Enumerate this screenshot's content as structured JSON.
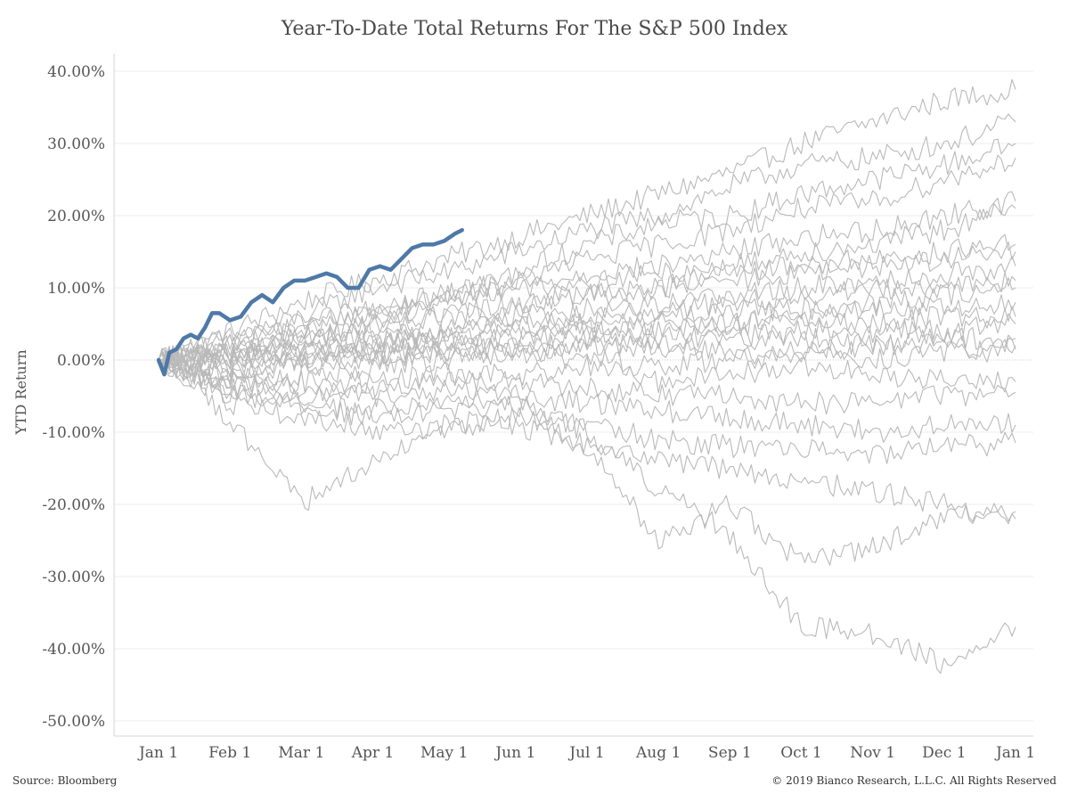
{
  "chart_data": {
    "type": "line",
    "title": "Year-To-Date Total Returns For The S&P 500 Index",
    "xlabel": "",
    "ylabel": "YTD Return",
    "x_tick_labels": [
      "Jan 1",
      "Feb 1",
      "Mar 1",
      "Apr 1",
      "May 1",
      "Jun 1",
      "Jul 1",
      "Aug 1",
      "Sep 1",
      "Oct 1",
      "Nov 1",
      "Dec 1",
      "Jan 1"
    ],
    "y_tick_labels": [
      "40.00%",
      "30.00%",
      "20.00%",
      "10.00%",
      "0.00%",
      "-10.00%",
      "-20.00%",
      "-30.00%",
      "-40.00%",
      "-50.00%"
    ],
    "y_tick_values": [
      40,
      30,
      20,
      10,
      0,
      -10,
      -20,
      -30,
      -40,
      -50
    ],
    "ylim": [
      -52,
      44
    ],
    "xlim_months": [
      -0.3,
      12.3
    ],
    "grid": true,
    "zero_line_dotted": true,
    "highlight_color": "#4e79a7",
    "history_color": "#b9b9b9",
    "highlight_series": {
      "x": [
        0,
        0.08,
        0.15,
        0.25,
        0.35,
        0.45,
        0.55,
        0.65,
        0.75,
        0.85,
        1.0,
        1.15,
        1.3,
        1.45,
        1.6,
        1.75,
        1.9,
        2.05,
        2.2,
        2.35,
        2.5,
        2.65,
        2.8,
        2.95,
        3.1,
        3.25,
        3.4,
        3.55,
        3.7,
        3.85,
        4.0,
        4.15,
        4.25
      ],
      "y": [
        0,
        -2,
        1,
        1.5,
        3,
        3.5,
        3,
        4.5,
        6.5,
        6.5,
        5.5,
        6,
        8,
        9,
        8,
        10,
        11,
        11,
        11.5,
        12,
        11.5,
        10,
        10,
        12.5,
        13,
        12.5,
        14,
        15.5,
        16,
        16,
        16.5,
        17.5,
        18
      ]
    },
    "history_series": [
      {
        "x": [
          0,
          1,
          2,
          3,
          4,
          5,
          6,
          7,
          8,
          9,
          10,
          11,
          12
        ],
        "y": [
          0,
          4,
          8,
          11,
          14,
          17,
          20,
          23,
          26,
          30,
          33,
          36,
          37.5
        ]
      },
      {
        "x": [
          0,
          1,
          2,
          3,
          4,
          5,
          6,
          7,
          8,
          9,
          10,
          11,
          12
        ],
        "y": [
          0,
          3,
          6,
          10,
          12,
          15,
          18,
          20,
          24,
          27,
          28,
          30,
          33
        ]
      },
      {
        "x": [
          0,
          1,
          2,
          3,
          4,
          5,
          6,
          7,
          8,
          9,
          10,
          11,
          12
        ],
        "y": [
          0,
          2,
          5,
          7,
          9,
          12,
          16,
          19,
          20,
          23,
          25,
          27,
          30
        ]
      },
      {
        "x": [
          0,
          1,
          2,
          3,
          4,
          5,
          6,
          7,
          8,
          9,
          10,
          11,
          12
        ],
        "y": [
          0,
          2,
          4,
          6,
          9,
          11,
          14,
          16,
          18,
          21,
          22,
          25,
          28
        ]
      },
      {
        "x": [
          0,
          1,
          2,
          3,
          4,
          5,
          6,
          7,
          8,
          9,
          10,
          11,
          12
        ],
        "y": [
          0,
          1,
          3,
          5,
          8,
          10,
          12,
          13,
          15,
          17,
          18,
          20,
          22
        ]
      },
      {
        "x": [
          0,
          1,
          2,
          3,
          4,
          5,
          6,
          7,
          8,
          9,
          10,
          11,
          12
        ],
        "y": [
          0,
          3,
          5,
          7,
          9,
          10,
          11,
          12,
          13,
          15,
          16,
          18,
          21
        ]
      },
      {
        "x": [
          0,
          1,
          2,
          3,
          4,
          5,
          6,
          7,
          8,
          9,
          10,
          11,
          12
        ],
        "y": [
          0,
          1,
          3,
          4,
          6,
          8,
          9,
          10,
          12,
          13,
          14,
          15,
          16
        ]
      },
      {
        "x": [
          0,
          1,
          2,
          3,
          4,
          5,
          6,
          7,
          8,
          9,
          10,
          11,
          12
        ],
        "y": [
          0,
          2,
          3,
          5,
          6,
          7,
          9,
          10,
          11,
          12,
          13,
          14,
          15
        ]
      },
      {
        "x": [
          0,
          1,
          2,
          3,
          4,
          5,
          6,
          7,
          8,
          9,
          10,
          11,
          12
        ],
        "y": [
          0,
          -1,
          1,
          2,
          4,
          6,
          7,
          8,
          9,
          10,
          11,
          12,
          13
        ]
      },
      {
        "x": [
          0,
          1,
          2,
          3,
          4,
          5,
          6,
          7,
          8,
          9,
          10,
          11,
          12
        ],
        "y": [
          0,
          0,
          2,
          3,
          4,
          6,
          6,
          7,
          8,
          9,
          10,
          10,
          11
        ]
      },
      {
        "x": [
          0,
          1,
          2,
          3,
          4,
          5,
          6,
          7,
          8,
          9,
          10,
          11,
          12
        ],
        "y": [
          0,
          1,
          1,
          2,
          3,
          5,
          5,
          6,
          7,
          7,
          8,
          9,
          10
        ]
      },
      {
        "x": [
          0,
          1,
          2,
          3,
          4,
          5,
          6,
          7,
          8,
          9,
          10,
          11,
          12
        ],
        "y": [
          0,
          -2,
          0,
          1,
          2,
          3,
          4,
          5,
          5,
          6,
          7,
          7,
          8
        ]
      },
      {
        "x": [
          0,
          1,
          2,
          3,
          4,
          5,
          6,
          7,
          8,
          9,
          10,
          11,
          12
        ],
        "y": [
          0,
          1,
          2,
          3,
          3,
          4,
          4,
          4,
          5,
          5,
          5,
          6,
          6
        ]
      },
      {
        "x": [
          0,
          1,
          2,
          3,
          4,
          5,
          6,
          7,
          8,
          9,
          10,
          11,
          12
        ],
        "y": [
          0,
          -1,
          0,
          1,
          2,
          2,
          3,
          3,
          3,
          4,
          4,
          4,
          5
        ]
      },
      {
        "x": [
          0,
          1,
          2,
          3,
          4,
          5,
          6,
          7,
          8,
          9,
          10,
          11,
          12
        ],
        "y": [
          0,
          0,
          1,
          1,
          1,
          2,
          2,
          2,
          3,
          3,
          2,
          3,
          3
        ]
      },
      {
        "x": [
          0,
          1,
          2,
          3,
          4,
          5,
          6,
          7,
          8,
          9,
          10,
          11,
          12
        ],
        "y": [
          0,
          -2,
          -1,
          0,
          1,
          1,
          2,
          2,
          1,
          1,
          2,
          2,
          2
        ]
      },
      {
        "x": [
          0,
          1,
          2,
          3,
          4,
          5,
          6,
          7,
          8,
          9,
          10,
          11,
          12
        ],
        "y": [
          0,
          -3,
          -2,
          -1,
          0,
          1,
          0,
          -1,
          0,
          1,
          0,
          1,
          1.5
        ]
      },
      {
        "x": [
          0,
          1,
          2,
          3,
          4,
          5,
          6,
          7,
          8,
          9,
          10,
          11,
          12
        ],
        "y": [
          0,
          -4,
          -3,
          -3,
          -2,
          -2,
          -1,
          -3,
          -2,
          -1,
          -2,
          -3,
          -3
        ]
      },
      {
        "x": [
          0,
          1,
          2,
          3,
          4,
          5,
          6,
          7,
          8,
          9,
          10,
          11,
          12
        ],
        "y": [
          0,
          -3,
          -5,
          -4,
          -3,
          -3,
          -4,
          -5,
          -5,
          -6,
          -6,
          -5,
          -4.5
        ]
      },
      {
        "x": [
          0,
          1,
          2,
          3,
          4,
          5,
          6,
          7,
          8,
          9,
          10,
          11,
          12
        ],
        "y": [
          0,
          -5,
          -6,
          -7,
          -6,
          -5,
          -6,
          -7,
          -8,
          -9,
          -10,
          -9,
          -9
        ]
      },
      {
        "x": [
          0,
          1,
          2,
          3,
          4,
          5,
          6,
          7,
          8,
          9,
          10,
          11,
          12
        ],
        "y": [
          0,
          -6,
          -8,
          -10,
          -9,
          -8,
          -9,
          -11,
          -12,
          -12,
          -13,
          -12,
          -11.5
        ]
      },
      {
        "x": [
          0,
          1,
          2,
          3,
          4,
          5,
          6,
          7,
          8,
          9,
          10,
          11,
          12
        ],
        "y": [
          0,
          -8,
          -20,
          -14,
          -10,
          -9,
          -12,
          -14,
          -15,
          -17,
          -18,
          -20,
          -22
        ]
      },
      {
        "x": [
          0,
          1,
          2,
          3,
          4,
          5,
          6,
          7,
          8,
          9,
          10,
          11,
          12
        ],
        "y": [
          0,
          -4,
          -6,
          -8,
          -7,
          -6,
          -12,
          -25,
          -20,
          -28,
          -26,
          -22,
          -21
        ]
      },
      {
        "x": [
          0,
          1,
          2,
          3,
          4,
          5,
          6,
          7,
          8,
          9,
          10,
          11,
          12
        ],
        "y": [
          0,
          -3,
          -4,
          -5,
          -4,
          -5,
          -10,
          -18,
          -24,
          -37,
          -38,
          -42,
          -37
        ]
      }
    ],
    "source_text": "Source: Bloomberg",
    "copyright_text": "© 2019 Bianco Research, L.L.C. All Rights Reserved"
  }
}
